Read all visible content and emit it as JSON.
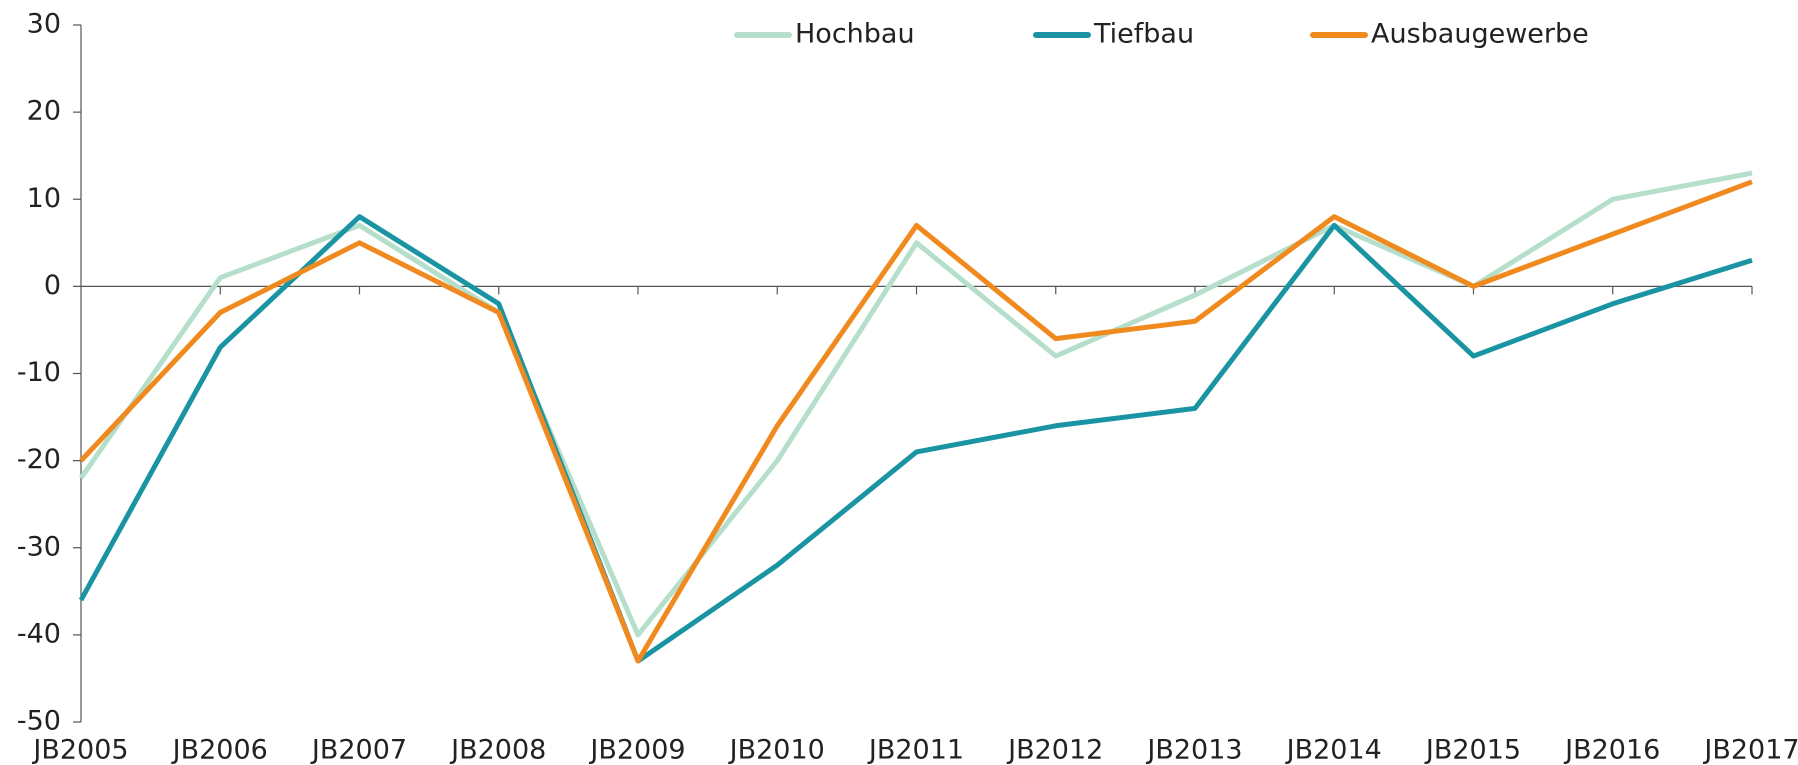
{
  "chart_data": {
    "type": "line",
    "categories": [
      "JB2005",
      "JB2006",
      "JB2007",
      "JB2008",
      "JB2009",
      "JB2010",
      "JB2011",
      "JB2012",
      "JB2013",
      "JB2014",
      "JB2015",
      "JB2016",
      "JB2017"
    ],
    "series": [
      {
        "name": "Hochbau",
        "color": "#b5dfca",
        "values": [
          -22,
          1,
          7,
          -3,
          -40,
          -20,
          5,
          -8,
          -1,
          7,
          0,
          10,
          13
        ]
      },
      {
        "name": "Tiefbau",
        "color": "#1a94a3",
        "values": [
          -36,
          -7,
          8,
          -2,
          -43,
          -32,
          -19,
          -16,
          -14,
          7,
          -8,
          -2,
          3
        ]
      },
      {
        "name": "Ausbaugewerbe",
        "color": "#f08a1e",
        "values": [
          -20,
          -3,
          5,
          -3,
          -43,
          -16,
          7,
          -6,
          -4,
          8,
          0,
          6,
          12
        ]
      }
    ],
    "ylim": [
      -50,
      30
    ],
    "yticks": [
      -50,
      -40,
      -30,
      -20,
      -10,
      0,
      10,
      20,
      30
    ],
    "grid": false,
    "legend": "top"
  }
}
